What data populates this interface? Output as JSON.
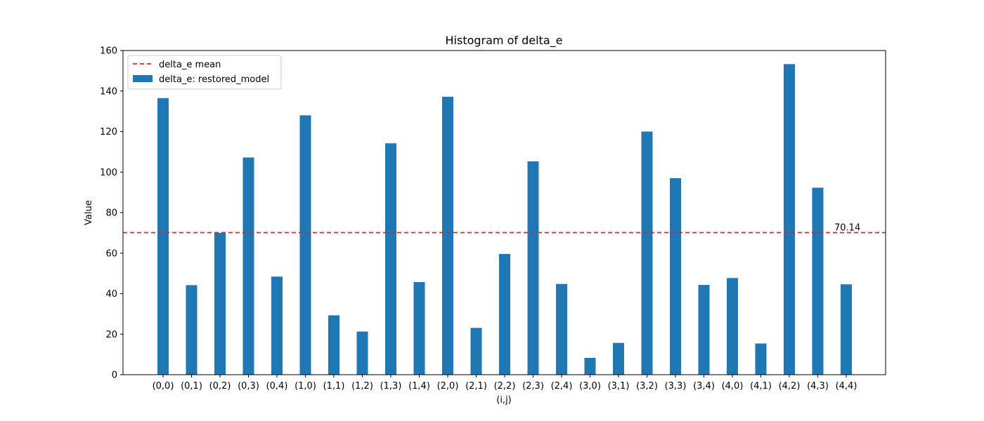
{
  "chart_data": {
    "type": "bar",
    "title": "Histogram of delta_e",
    "xlabel": "(i,j)",
    "ylabel": "Value",
    "ylim": [
      0,
      160
    ],
    "yticks": [
      0,
      20,
      40,
      60,
      80,
      100,
      120,
      140,
      160
    ],
    "grid": false,
    "legend_position": "top-left",
    "categories": [
      "(0,0)",
      "(0,1)",
      "(0,2)",
      "(0,3)",
      "(0,4)",
      "(1,0)",
      "(1,1)",
      "(1,2)",
      "(1,3)",
      "(1,4)",
      "(2,0)",
      "(2,1)",
      "(2,2)",
      "(2,3)",
      "(2,4)",
      "(3,0)",
      "(3,1)",
      "(3,2)",
      "(3,3)",
      "(3,4)",
      "(4,0)",
      "(4,1)",
      "(4,2)",
      "(4,3)",
      "(4,4)"
    ],
    "series": [
      {
        "name": "delta_e: restored_model",
        "color": "#1f77b4",
        "values": [
          136.5,
          44.2,
          70.0,
          107.2,
          48.4,
          128.0,
          29.3,
          21.3,
          114.2,
          45.7,
          137.2,
          23.1,
          59.6,
          105.3,
          44.8,
          8.3,
          15.7,
          120.0,
          97.0,
          44.3,
          47.7,
          15.4,
          153.3,
          92.3,
          44.6
        ]
      }
    ],
    "mean_line": {
      "name": "delta_e mean",
      "value": 70.14,
      "label": "70.14",
      "color": "#d62728",
      "style": "dashed"
    }
  }
}
